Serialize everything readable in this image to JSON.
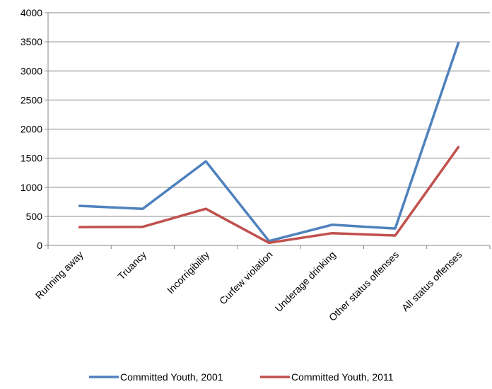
{
  "chart_data": {
    "type": "line",
    "title": "",
    "xlabel": "",
    "ylabel": "",
    "categories": [
      "Running away",
      "Truancy",
      "Incorrigibility",
      "Curfew violation",
      "Underage drinking",
      "Other status offenses",
      "All status offenses"
    ],
    "ylim": [
      0,
      4000
    ],
    "yticks": [
      "0",
      "500",
      "1000",
      "1500",
      "2000",
      "2500",
      "3000",
      "3500",
      "4000"
    ],
    "grid": "horizontal",
    "legend_position": "bottom",
    "series": [
      {
        "name": "Committed Youth, 2001",
        "color": "#4f81bd",
        "values": [
          680,
          630,
          1445,
          75,
          355,
          290,
          3480
        ]
      },
      {
        "name": "Committed Youth, 2011",
        "color": "#c0504d",
        "values": [
          315,
          320,
          630,
          45,
          210,
          170,
          1690
        ]
      }
    ]
  }
}
